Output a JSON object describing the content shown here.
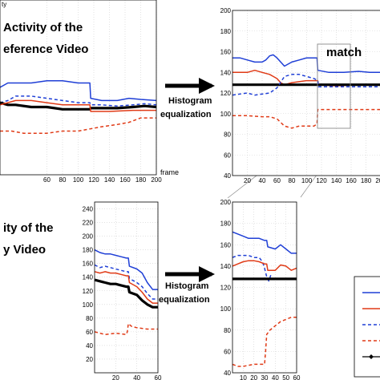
{
  "colors": {
    "blue": "#1f3fd6",
    "red": "#e03a16",
    "black": "#000000",
    "match": "#e0201a",
    "zoom": "#8a8a8a"
  },
  "labels": {
    "top_title_line1": "Activity of the",
    "top_title_line2": "eference Video",
    "bottom_title_line1": "ity of the",
    "bottom_title_line2": "y Video",
    "hist_top_line1": "Histogram",
    "hist_top_line2": "equalization",
    "hist_bottom_line1": "Histogram",
    "hist_bottom_line2": "equalization",
    "match": "match",
    "frame_label": "frame",
    "top_ylabel_fragment": "ty"
  },
  "chart_data": [
    {
      "id": "top-left",
      "type": "line",
      "title": "",
      "xlabel": "frame",
      "ylabel": "ty",
      "xlim": [
        0,
        200
      ],
      "ylim": [
        40,
        200
      ],
      "xticks": [
        60,
        80,
        100,
        120,
        140,
        160,
        180,
        200
      ],
      "grid": true,
      "series": [
        {
          "style": "blue-solid",
          "x": [
            0,
            10,
            20,
            40,
            60,
            80,
            100,
            115,
            116,
            130,
            150,
            165,
            180,
            200
          ],
          "y": [
            120,
            124,
            124,
            124,
            126,
            126,
            124,
            124,
            110,
            108,
            108,
            110,
            109,
            108
          ]
        },
        {
          "style": "blue-dashed",
          "x": [
            0,
            10,
            20,
            40,
            60,
            80,
            100,
            115,
            116,
            130,
            150,
            170,
            185,
            200
          ],
          "y": [
            106,
            108,
            112,
            112,
            110,
            108,
            106,
            106,
            104,
            104,
            103,
            104,
            105,
            104
          ]
        },
        {
          "style": "black-thick",
          "x": [
            0,
            10,
            20,
            40,
            60,
            80,
            100,
            115,
            116,
            130,
            150,
            170,
            185,
            200
          ],
          "y": [
            106,
            104,
            104,
            102,
            102,
            100,
            100,
            100,
            101,
            101,
            101,
            102,
            103,
            102
          ]
        },
        {
          "style": "red-solid",
          "x": [
            0,
            20,
            40,
            60,
            80,
            100,
            115,
            116,
            140,
            170,
            185,
            200
          ],
          "y": [
            104,
            108,
            108,
            106,
            104,
            104,
            104,
            98,
            98,
            99,
            99,
            99
          ]
        },
        {
          "style": "red-dashed",
          "x": [
            0,
            15,
            30,
            60,
            80,
            100,
            115,
            130,
            150,
            165,
            180,
            200
          ],
          "y": [
            80,
            80,
            78,
            78,
            80,
            80,
            82,
            84,
            86,
            88,
            92,
            92
          ]
        }
      ]
    },
    {
      "id": "top-right",
      "type": "line",
      "title": "",
      "xlabel": "",
      "ylabel": "",
      "xlim": [
        0,
        200
      ],
      "ylim": [
        40,
        200
      ],
      "xticks": [
        20,
        40,
        60,
        80,
        100,
        120,
        140,
        160,
        180,
        200
      ],
      "yticks": [
        40,
        60,
        80,
        100,
        120,
        140,
        160,
        180,
        200
      ],
      "grid": true,
      "series": [
        {
          "style": "blue-solid",
          "x": [
            0,
            10,
            20,
            30,
            40,
            45,
            50,
            55,
            60,
            70,
            80,
            90,
            100,
            110,
            114,
            115,
            130,
            150,
            170,
            185,
            200
          ],
          "y": [
            154,
            154,
            152,
            150,
            150,
            152,
            156,
            157,
            154,
            146,
            150,
            152,
            154,
            154,
            154,
            142,
            140,
            140,
            141,
            140,
            140
          ]
        },
        {
          "style": "red-solid",
          "x": [
            0,
            20,
            30,
            40,
            50,
            55,
            60,
            65,
            70,
            80,
            100,
            115,
            116,
            140,
            170,
            200
          ],
          "y": [
            140,
            140,
            142,
            140,
            138,
            136,
            134,
            130,
            128,
            130,
            132,
            132,
            128,
            127,
            128,
            128
          ]
        },
        {
          "style": "black-thick",
          "x": [
            0,
            200
          ],
          "y": [
            128,
            128
          ]
        },
        {
          "style": "blue-dashed",
          "x": [
            0,
            20,
            30,
            50,
            60,
            70,
            80,
            90,
            100,
            110,
            115,
            116,
            130,
            150,
            170,
            200
          ],
          "y": [
            118,
            120,
            118,
            120,
            125,
            136,
            138,
            138,
            136,
            134,
            132,
            126,
            126,
            126,
            126,
            126
          ]
        },
        {
          "style": "red-dashed",
          "x": [
            0,
            20,
            40,
            50,
            60,
            70,
            80,
            90,
            100,
            110,
            114,
            115,
            140,
            200
          ],
          "y": [
            98,
            98,
            97,
            97,
            95,
            88,
            86,
            88,
            88,
            88,
            90,
            104,
            104,
            104
          ]
        }
      ]
    },
    {
      "id": "bottom-left",
      "type": "line",
      "title": "",
      "xlabel": "",
      "ylabel": "",
      "xlim": [
        0,
        60
      ],
      "ylim": [
        0,
        250
      ],
      "xticks": [
        20,
        40,
        60
      ],
      "yticks": [
        20,
        40,
        60,
        80,
        100,
        120,
        140,
        160,
        180,
        200,
        220,
        240
      ],
      "grid": true,
      "series": [
        {
          "style": "blue-solid",
          "x": [
            0,
            5,
            10,
            15,
            20,
            25,
            30,
            32,
            33,
            40,
            45,
            50,
            55,
            60
          ],
          "y": [
            180,
            176,
            174,
            174,
            172,
            170,
            168,
            168,
            156,
            152,
            146,
            132,
            122,
            122
          ]
        },
        {
          "style": "blue-dashed",
          "x": [
            0,
            5,
            10,
            15,
            20,
            25,
            30,
            32,
            33,
            40,
            45,
            50,
            55,
            60
          ],
          "y": [
            158,
            154,
            156,
            154,
            152,
            150,
            148,
            148,
            138,
            132,
            126,
            116,
            108,
            108
          ]
        },
        {
          "style": "red-solid",
          "x": [
            0,
            5,
            10,
            15,
            20,
            25,
            30,
            32,
            33,
            40,
            45,
            50,
            55,
            60
          ],
          "y": [
            148,
            146,
            148,
            146,
            146,
            144,
            142,
            142,
            132,
            126,
            118,
            108,
            102,
            102
          ]
        },
        {
          "style": "black-thick",
          "x": [
            0,
            5,
            10,
            15,
            20,
            25,
            30,
            32,
            33,
            40,
            45,
            50,
            55,
            60
          ],
          "y": [
            136,
            134,
            132,
            130,
            130,
            128,
            126,
            126,
            118,
            114,
            106,
            100,
            96,
            96
          ]
        },
        {
          "style": "red-dashed",
          "x": [
            0,
            10,
            20,
            30,
            31,
            32,
            35,
            40,
            50,
            60
          ],
          "y": [
            60,
            56,
            58,
            56,
            60,
            72,
            68,
            66,
            64,
            64
          ]
        }
      ]
    },
    {
      "id": "bottom-right",
      "type": "line",
      "title": "",
      "xlabel": "",
      "ylabel": "",
      "xlim": [
        0,
        60
      ],
      "ylim": [
        40,
        200
      ],
      "xticks": [
        10,
        20,
        30,
        40,
        50,
        60
      ],
      "yticks": [
        40,
        60,
        80,
        100,
        120,
        140,
        160,
        180,
        200
      ],
      "grid": true,
      "series": [
        {
          "style": "blue-solid",
          "x": [
            0,
            5,
            10,
            15,
            20,
            25,
            30,
            32,
            33,
            40,
            45,
            50,
            55,
            60
          ],
          "y": [
            172,
            170,
            168,
            166,
            166,
            166,
            164,
            164,
            158,
            156,
            160,
            156,
            152,
            152
          ]
        },
        {
          "style": "blue-dashed",
          "x": [
            0,
            5,
            10,
            15,
            20,
            25,
            28,
            30,
            32,
            34,
            36
          ],
          "y": [
            148,
            150,
            150,
            150,
            148,
            148,
            144,
            138,
            130,
            126,
            132
          ]
        },
        {
          "style": "red-solid",
          "x": [
            0,
            5,
            10,
            15,
            20,
            25,
            30,
            32,
            33,
            40,
            45,
            50,
            55,
            60
          ],
          "y": [
            140,
            142,
            144,
            145,
            145,
            144,
            142,
            142,
            136,
            136,
            141,
            140,
            136,
            138
          ]
        },
        {
          "style": "black-thick",
          "x": [
            0,
            60
          ],
          "y": [
            128,
            128
          ]
        },
        {
          "style": "red-dashed",
          "x": [
            0,
            5,
            10,
            20,
            30,
            31,
            32,
            35,
            40,
            45,
            50,
            55,
            60
          ],
          "y": [
            48,
            46,
            46,
            48,
            48,
            60,
            76,
            80,
            84,
            88,
            90,
            92,
            92
          ]
        }
      ]
    }
  ]
}
